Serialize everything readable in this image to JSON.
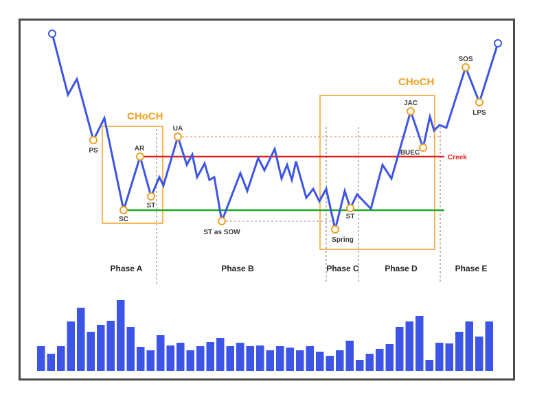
{
  "colors": {
    "price": "#3d55e6",
    "marker": "#f0a020",
    "creek": "#e02020",
    "support": "#22a822",
    "box": "#f0a020",
    "bars": "#3d55e6",
    "resistance_dash": "#d88060",
    "support_dash": "#999999",
    "phase_divider": "#777777"
  },
  "choch_labels": [
    "CHoCH",
    "CHoCH"
  ],
  "creek_label": "Creek",
  "point_labels": {
    "ps": "PS",
    "sc": "SC",
    "ar": "AR",
    "st1": "ST",
    "ua": "UA",
    "st_sow": "ST as SOW",
    "spring": "Spring",
    "st2": "ST",
    "buec": "BUEC",
    "jac": "JAC",
    "sos": "SOS",
    "lps": "LPS"
  },
  "phases": [
    "Phase A",
    "Phase B",
    "Phase C",
    "Phase D",
    "Phase E"
  ],
  "volume_bars": [
    36,
    25,
    36,
    72,
    92,
    57,
    67,
    73,
    103,
    64,
    35,
    30,
    52,
    37,
    41,
    30,
    36,
    42,
    48,
    36,
    41,
    36,
    37,
    30,
    36,
    34,
    30,
    36,
    28,
    22,
    30,
    44,
    16,
    25,
    32,
    39,
    64,
    72,
    80,
    16,
    41,
    40,
    57,
    72,
    50,
    72
  ]
}
